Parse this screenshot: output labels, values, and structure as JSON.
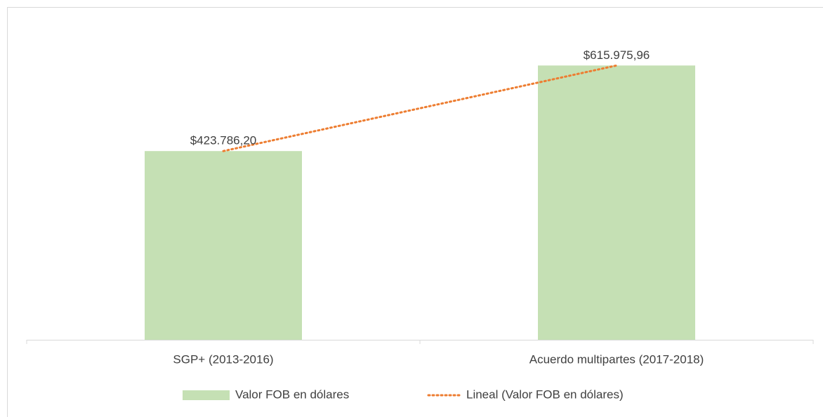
{
  "chart_data": {
    "type": "bar",
    "categories": [
      "SGP+ (2013-2016)",
      "Acuerdo multipartes (2017-2018)"
    ],
    "series": [
      {
        "name": "Valor FOB en dólares",
        "color": "#c5e0b4",
        "values": [
          423786.2,
          615975.96
        ],
        "value_labels": [
          "$423.786,20",
          "$615.975,96"
        ]
      }
    ],
    "trendline": {
      "name": "Lineal (Valor FOB en dólares)",
      "color": "#ed7d31"
    },
    "ylim": [
      0,
      700000
    ],
    "legend": "bottom"
  }
}
